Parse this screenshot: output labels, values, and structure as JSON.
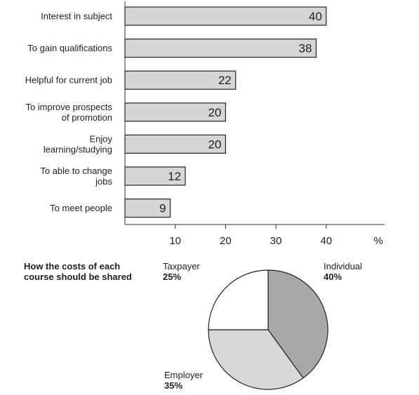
{
  "chart_data": [
    {
      "type": "bar",
      "orientation": "horizontal",
      "categories": [
        [
          "Interest in subject"
        ],
        [
          "To gain qualifications"
        ],
        [
          "Helpful for current job"
        ],
        [
          "To improve prospects",
          "of promotion"
        ],
        [
          "Enjoy",
          "learning/studying"
        ],
        [
          "To able to change",
          "jobs"
        ],
        [
          "To meet people"
        ]
      ],
      "values": [
        40,
        38,
        22,
        20,
        20,
        12,
        9
      ],
      "xticks": [
        10,
        20,
        30,
        40
      ],
      "xunit": "%",
      "xlim": [
        0,
        50
      ],
      "bar_color": "#d6d6d6",
      "grid": false
    },
    {
      "type": "pie",
      "title": [
        "How the costs of each",
        "course should be shared"
      ],
      "slices": [
        {
          "name": "Individual",
          "value": 40,
          "label": "40%",
          "color": "#a8a8ab"
        },
        {
          "name": "Employer",
          "value": 35,
          "label": "35%",
          "color": "#d8d8da"
        },
        {
          "name": "Taxpayer",
          "value": 25,
          "label": "25%",
          "color": "#ffffff"
        }
      ]
    }
  ]
}
